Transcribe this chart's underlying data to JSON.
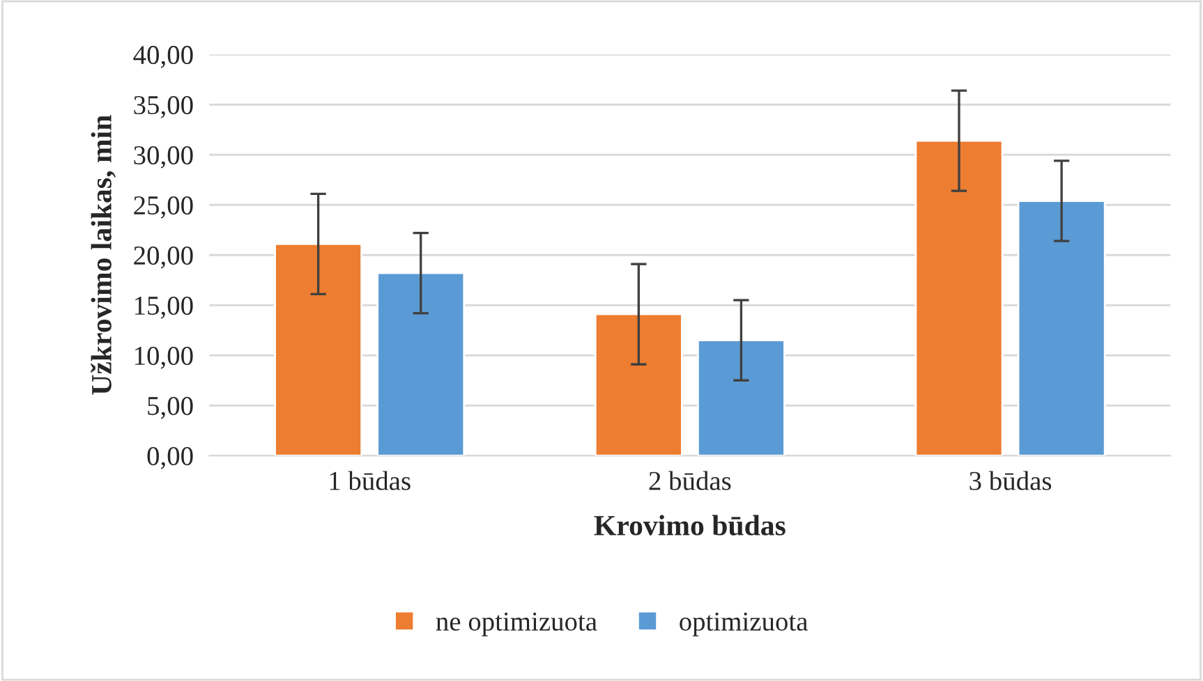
{
  "chart_data": {
    "type": "bar",
    "xlabel": "Krovimo būdas",
    "ylabel": "Užkrovimo laikas, min",
    "categories": [
      "1 būdas",
      "2 būdas",
      "3 būdas"
    ],
    "series": [
      {
        "name": "ne optimizuota",
        "color": "#ed7d31",
        "values": [
          21.1,
          14.1,
          31.4
        ],
        "errors": [
          5,
          5,
          5
        ]
      },
      {
        "name": "optimizuota",
        "color": "#5b9bd5",
        "values": [
          18.2,
          11.5,
          25.4
        ],
        "errors": [
          4,
          4,
          4
        ]
      }
    ],
    "ylim": [
      0,
      40
    ],
    "yticks": [
      {
        "value": 0,
        "label": "0,00"
      },
      {
        "value": 5,
        "label": "5,00"
      },
      {
        "value": 10,
        "label": "10,00"
      },
      {
        "value": 15,
        "label": "15,00"
      },
      {
        "value": 20,
        "label": "20,00"
      },
      {
        "value": 25,
        "label": "25,00"
      },
      {
        "value": 30,
        "label": "30,00"
      },
      {
        "value": 35,
        "label": "35,00"
      },
      {
        "value": 40,
        "label": "40,00"
      }
    ],
    "grid": "y",
    "legend": "bottom"
  }
}
